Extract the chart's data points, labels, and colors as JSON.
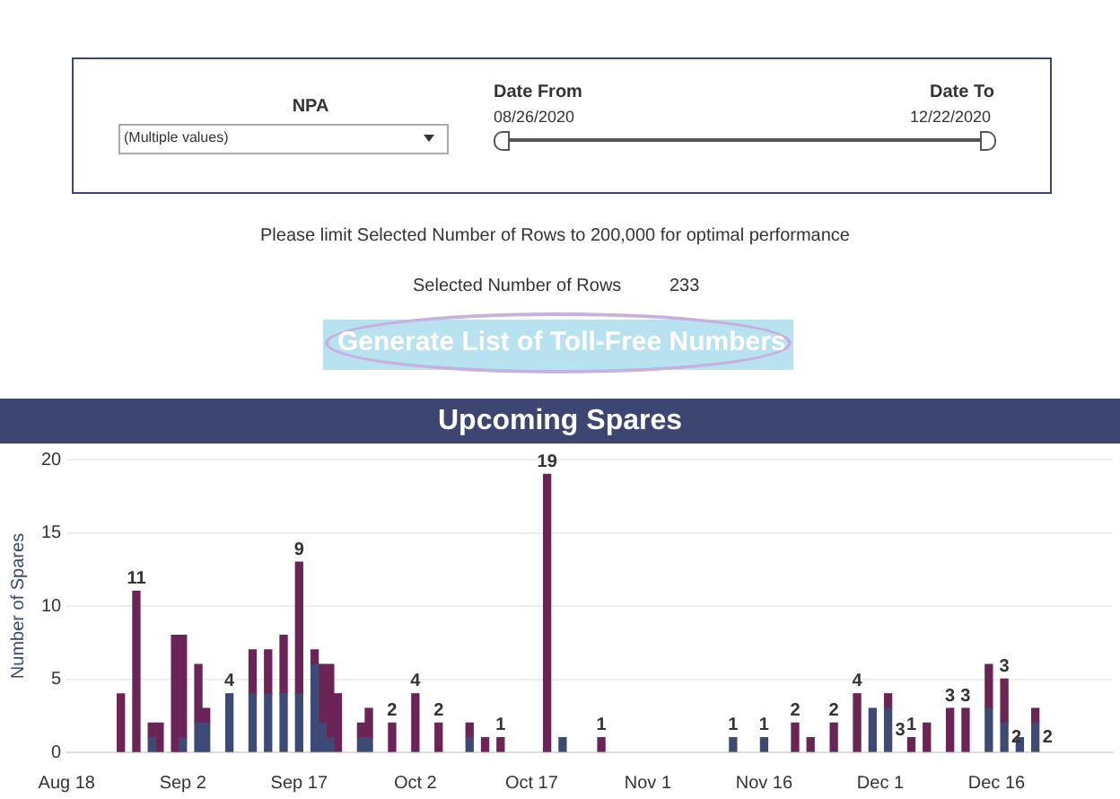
{
  "chart_data": {
    "type": "bar",
    "title": "Upcoming Spares",
    "ylabel": "Number of Spares",
    "annotations": [
      "NPA",
      "(Multiple values)",
      "Date From",
      "08/26/2020",
      "Date To",
      "12/22/2020",
      "Please limit Selected Number of Rows to 200,000 for optimal performance",
      "Selected Number of Rows",
      "233",
      "Generate List of Toll-Free Numbers"
    ],
    "stacked": true,
    "grid": "y",
    "legend": false,
    "x": [
      "2020-08-25",
      "2020-08-27",
      "2020-08-29",
      "2020-08-30",
      "2020-09-01",
      "2020-09-02",
      "2020-09-04",
      "2020-09-05",
      "2020-09-08",
      "2020-09-11",
      "2020-09-13",
      "2020-09-15",
      "2020-09-17",
      "2020-09-19",
      "2020-09-20",
      "2020-09-21",
      "2020-09-22",
      "2020-09-25",
      "2020-09-26",
      "2020-09-29",
      "2020-10-02",
      "2020-10-05",
      "2020-10-09",
      "2020-10-11",
      "2020-10-13",
      "2020-10-19",
      "2020-10-21",
      "2020-10-26",
      "2020-11-12",
      "2020-11-16",
      "2020-11-20",
      "2020-11-22",
      "2020-11-25",
      "2020-11-28",
      "2020-11-30",
      "2020-12-02",
      "2020-12-05",
      "2020-12-07",
      "2020-12-10",
      "2020-12-12",
      "2020-12-15",
      "2020-12-17",
      "2020-12-19",
      "2020-12-21"
    ],
    "series": [
      {
        "color": "#3d4a73",
        "values": [
          null,
          null,
          1,
          null,
          null,
          1,
          2,
          2,
          4,
          4,
          4,
          4,
          4,
          6,
          2,
          1,
          null,
          1,
          1,
          null,
          null,
          null,
          1,
          null,
          null,
          null,
          1,
          null,
          1,
          1,
          null,
          null,
          null,
          null,
          3,
          3,
          null,
          null,
          null,
          null,
          3,
          2,
          1,
          2
        ],
        "value_labels": [
          null,
          null,
          null,
          null,
          null,
          null,
          null,
          null,
          "4",
          null,
          null,
          null,
          null,
          null,
          null,
          null,
          null,
          null,
          null,
          null,
          null,
          null,
          null,
          null,
          null,
          null,
          null,
          null,
          "1",
          "1",
          null,
          null,
          null,
          null,
          null,
          "3",
          null,
          null,
          null,
          null,
          null,
          "2",
          null,
          "2"
        ]
      },
      {
        "color": "#6b2456",
        "values": [
          4,
          11,
          1,
          2,
          8,
          7,
          4,
          1,
          null,
          3,
          3,
          4,
          9,
          1,
          4,
          5,
          4,
          1,
          2,
          2,
          4,
          2,
          1,
          1,
          1,
          19,
          null,
          1,
          null,
          null,
          2,
          1,
          2,
          4,
          null,
          1,
          1,
          2,
          3,
          3,
          3,
          3,
          null,
          1
        ],
        "value_labels": [
          null,
          "11",
          null,
          null,
          null,
          null,
          null,
          null,
          null,
          null,
          null,
          null,
          "9",
          null,
          null,
          null,
          null,
          null,
          null,
          "2",
          "4",
          "2",
          null,
          null,
          "1",
          "19",
          null,
          "1",
          null,
          null,
          "2",
          null,
          "2",
          "4",
          null,
          null,
          "1",
          null,
          "3",
          "3",
          null,
          "3",
          null,
          null
        ]
      }
    ],
    "xlim": [
      "2020-08-18",
      "2020-12-31"
    ],
    "xticks": [
      {
        "value": "2020-08-18",
        "label": "Aug 18"
      },
      {
        "value": "2020-09-02",
        "label": "Sep 2"
      },
      {
        "value": "2020-09-17",
        "label": "Sep 17"
      },
      {
        "value": "2020-10-02",
        "label": "Oct 2"
      },
      {
        "value": "2020-10-17",
        "label": "Oct 17"
      },
      {
        "value": "2020-11-01",
        "label": "Nov 1"
      },
      {
        "value": "2020-11-16",
        "label": "Nov 16"
      },
      {
        "value": "2020-12-01",
        "label": "Dec 1"
      },
      {
        "value": "2020-12-16",
        "label": "Dec 16"
      }
    ],
    "ylim": [
      0,
      20
    ],
    "yticks": [
      0,
      5,
      10,
      15,
      20
    ]
  }
}
